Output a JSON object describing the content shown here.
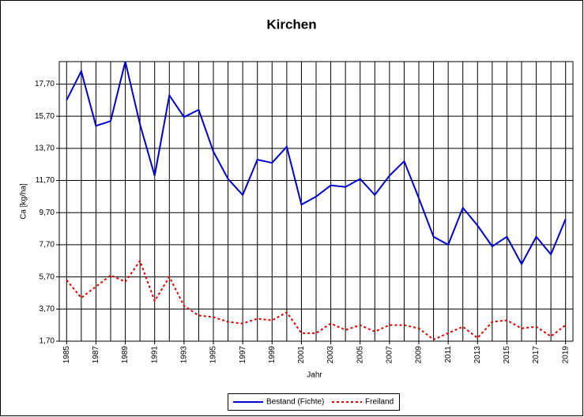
{
  "chart_data": {
    "type": "line",
    "title": "Kirchen",
    "x_label": "Jahr",
    "y_label": "Ca [kg/ha]",
    "x": [
      1985,
      1986,
      1987,
      1988,
      1989,
      1990,
      1991,
      1992,
      1993,
      1994,
      1995,
      1996,
      1997,
      1998,
      1999,
      2000,
      2001,
      2002,
      2003,
      2004,
      2005,
      2006,
      2007,
      2008,
      2009,
      2010,
      2011,
      2012,
      2013,
      2014,
      2015,
      2016,
      2017,
      2018,
      2019
    ],
    "series": [
      {
        "name": "Bestand (Fichte)",
        "color": "#0000cc",
        "dash": false,
        "values": [
          16.7,
          18.5,
          15.1,
          15.4,
          19.1,
          15.2,
          12.0,
          17.0,
          15.65,
          16.1,
          13.5,
          11.8,
          10.8,
          13.0,
          12.8,
          13.8,
          10.2,
          10.7,
          11.4,
          11.3,
          11.8,
          10.8,
          12.0,
          12.9,
          10.6,
          8.2,
          7.7,
          10.0,
          8.9,
          7.6,
          8.2,
          6.5,
          8.2,
          7.1,
          9.3
        ]
      },
      {
        "name": "Freiland",
        "color": "#dd0000",
        "dash": true,
        "values": [
          5.5,
          4.4,
          5.1,
          5.8,
          5.4,
          6.7,
          4.2,
          5.7,
          3.9,
          3.3,
          3.2,
          2.9,
          2.8,
          3.1,
          3.0,
          3.5,
          2.2,
          2.2,
          2.8,
          2.4,
          2.7,
          2.3,
          2.7,
          2.7,
          2.5,
          1.8,
          2.2,
          2.6,
          1.9,
          2.9,
          3.0,
          2.5,
          2.6,
          2.0,
          2.7
        ]
      }
    ],
    "xlim": [
      1984.5,
      2019.5
    ],
    "xticks": [
      1985,
      1987,
      1989,
      1991,
      1993,
      1995,
      1997,
      1999,
      2001,
      2003,
      2005,
      2007,
      2009,
      2011,
      2013,
      2015,
      2017,
      2019
    ],
    "ylim": [
      1.7,
      19.1
    ],
    "yticks": [
      {
        "value": 1.7,
        "label": "1,70"
      },
      {
        "value": 3.7,
        "label": "3,70"
      },
      {
        "value": 5.7,
        "label": "5,70"
      },
      {
        "value": 7.7,
        "label": "7,70"
      },
      {
        "value": 9.7,
        "label": "9,70"
      },
      {
        "value": 11.7,
        "label": "11,70"
      },
      {
        "value": 13.7,
        "label": "13,70"
      },
      {
        "value": 15.7,
        "label": "15,70"
      },
      {
        "value": 17.7,
        "label": "17,70"
      }
    ],
    "grid": true
  }
}
